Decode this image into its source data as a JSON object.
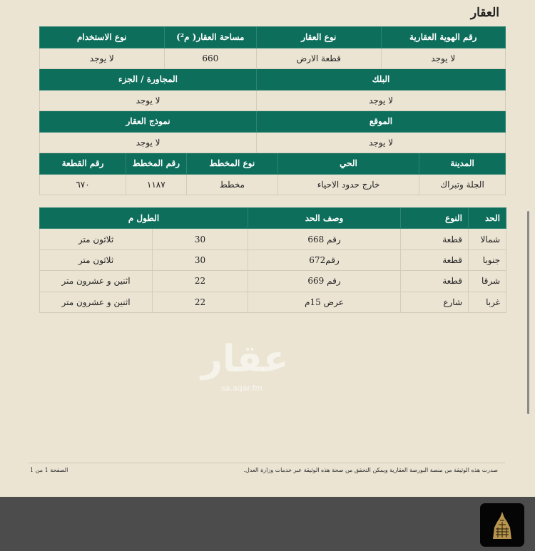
{
  "section_title": "العقار",
  "property_table": {
    "row1_headers": [
      "رقم الهوية العقارية",
      "نوع العقار",
      "مساحة العقار( م²)",
      "نوع الاستخدام"
    ],
    "row1_values": [
      "لا يوجد",
      "قطعة الارض",
      "660",
      "لا يوجد"
    ],
    "row2_headers": [
      "البلك",
      "المجاورة / الجزء"
    ],
    "row2_values": [
      "لا يوجد",
      "لا يوجد"
    ],
    "row3_headers": [
      "الموقع",
      "نموذج العقار"
    ],
    "row3_values": [
      "لا يوجد",
      "لا يوجد"
    ],
    "row4_headers": [
      "المدينة",
      "الحي",
      "نوع المخطط",
      "رقم المخطط",
      "رقم القطعة"
    ],
    "row4_values": [
      "الجلة وتبراك",
      "خارج حدود الاحياء",
      "مخطط",
      "١١٨٧",
      "٦٧٠"
    ]
  },
  "watermark": {
    "text": "عقار",
    "sub": "sa.aqar.fm"
  },
  "boundaries_table": {
    "headers": [
      "الحد",
      "النوع",
      "وصف الحد",
      "الطول م"
    ],
    "rows": [
      [
        "شمالا",
        "قطعة",
        "رقم 668",
        "30",
        "ثلاثون متر"
      ],
      [
        "جنوبا",
        "قطعة",
        "رقم672",
        "30",
        "ثلاثون متر"
      ],
      [
        "شرقا",
        "قطعة",
        "رقم 669",
        "22",
        "اثنين و عشرون متر"
      ],
      [
        "غربا",
        "شارع",
        "عرض 15م",
        "22",
        "اثنين و عشرون متر"
      ]
    ]
  },
  "footer": {
    "notice": "صدرت هذه الوثيقة من منصة البورصة العقارية ويمكن التحقق من صحة هذه الوثيقة عبر خدمات وزارة العدل.",
    "page": "الصفحة 1 من 1"
  },
  "colors": {
    "header_green": "#0e6e5c",
    "paper": "#ebe4d3",
    "dark_bar": "#4d4c4c",
    "logo_gold": "#b8954f"
  },
  "icons": {
    "logo": "ministry-kufic-logo"
  }
}
